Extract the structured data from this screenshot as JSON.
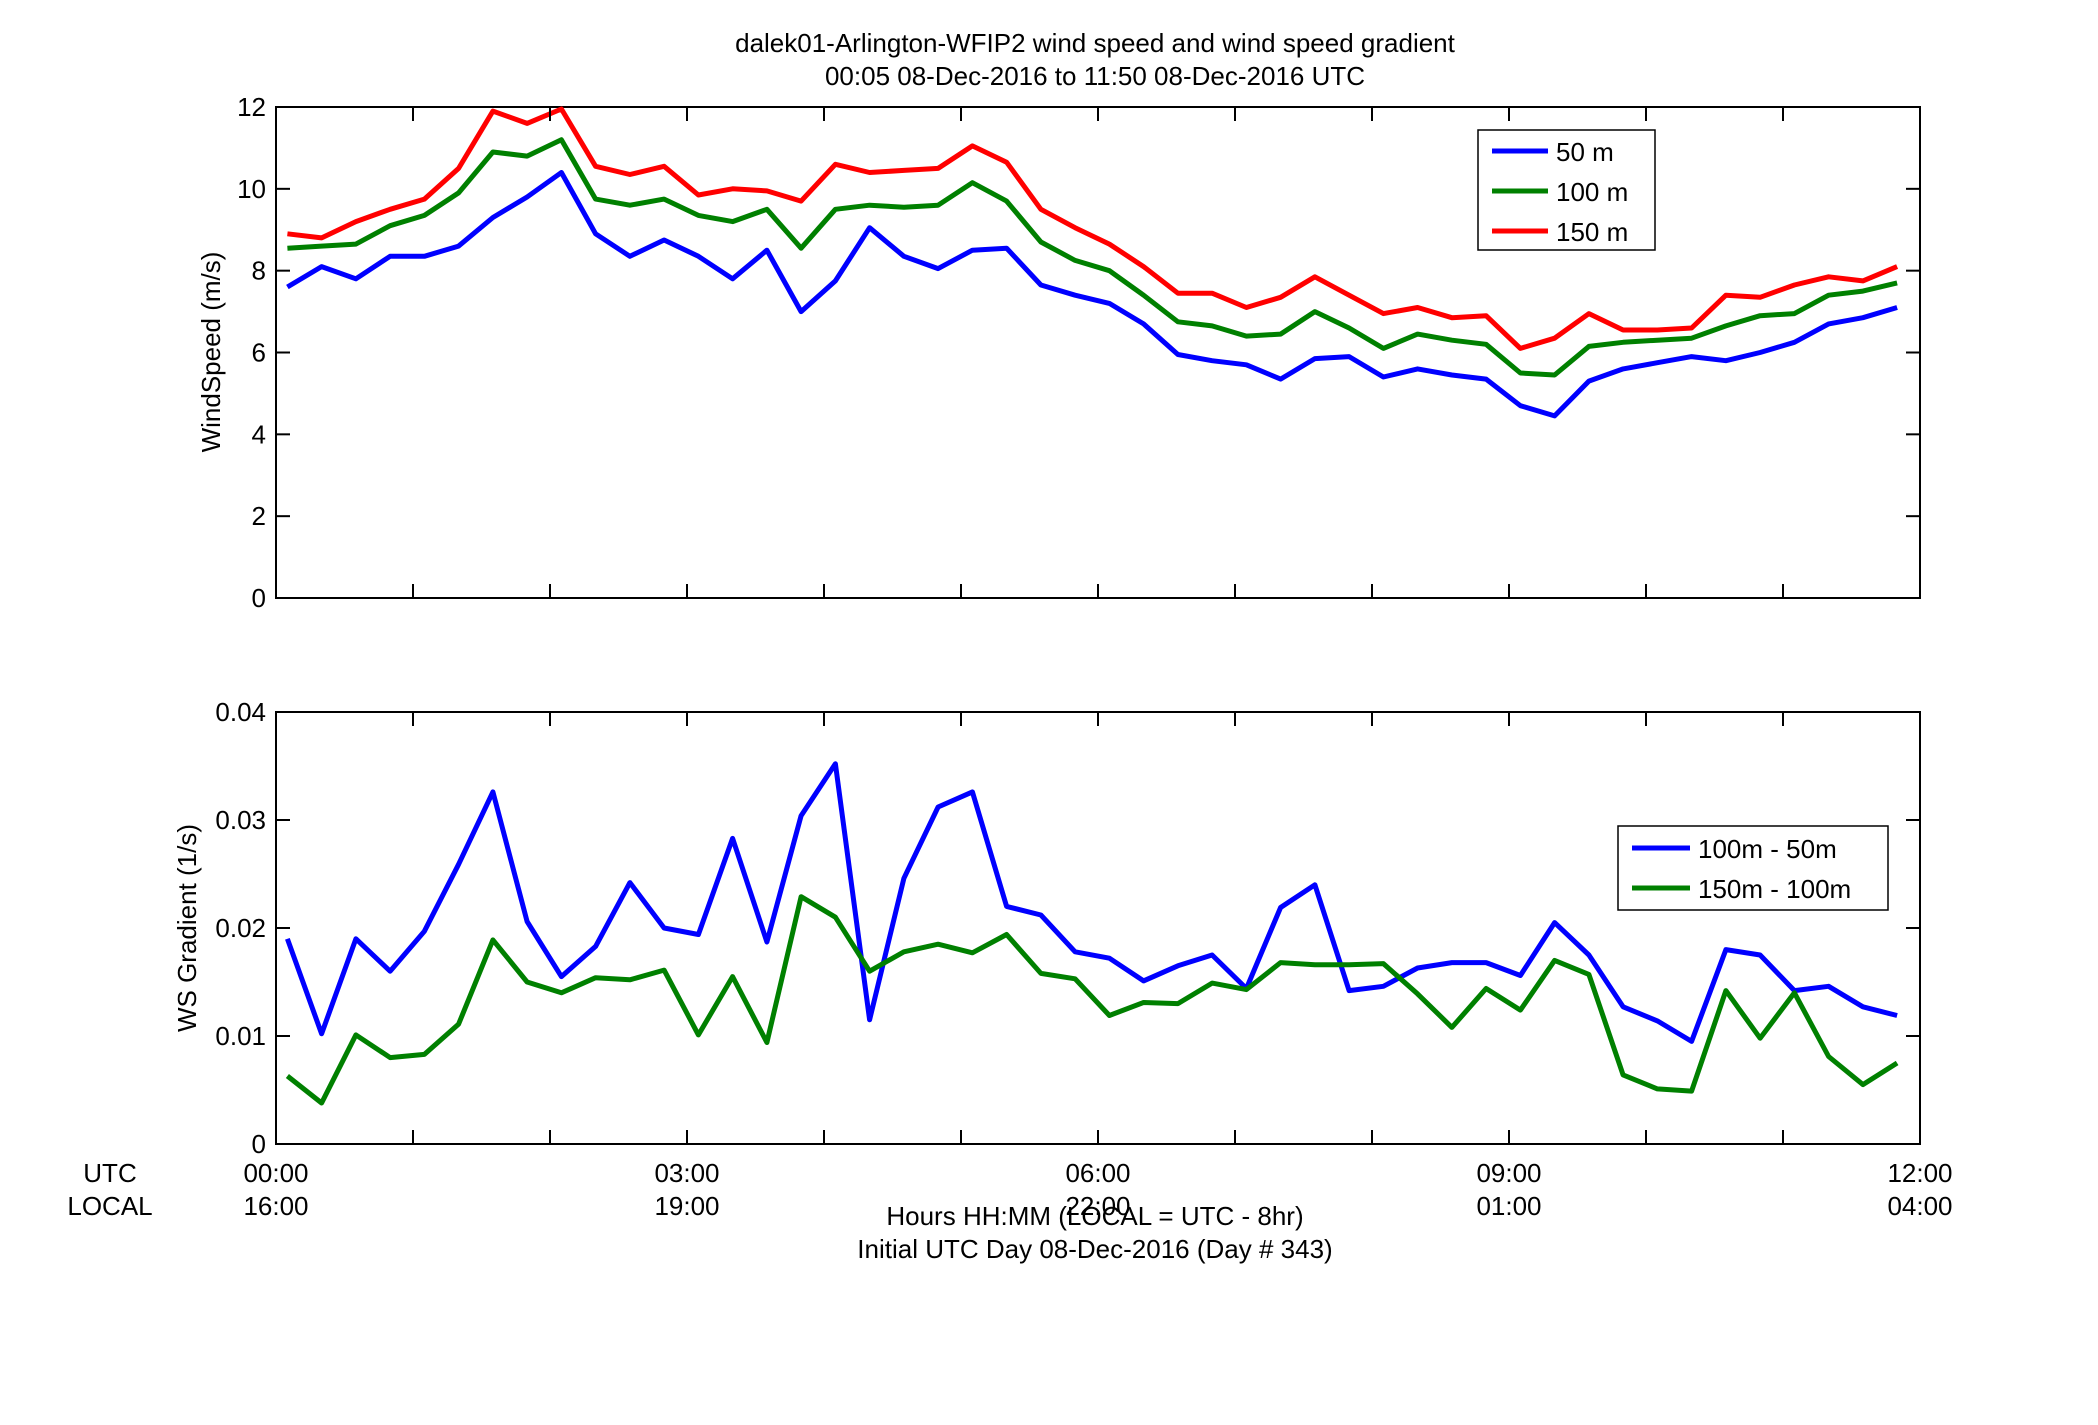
{
  "chart_data": [
    {
      "type": "line",
      "title": "dalek01-Arlington-WFIP2  wind speed and wind speed gradient",
      "subtitle": "00:05 08-Dec-2016 to 11:50 08-Dec-2016  UTC",
      "xlabel": "",
      "ylabel": "WindSpeed (m/s)",
      "xlim": [
        0,
        12
      ],
      "ylim": [
        0,
        12
      ],
      "yticks": [
        "0",
        "2",
        "4",
        "6",
        "8",
        "10",
        "12"
      ],
      "grid": false,
      "legend_position": "top-right",
      "x": [
        0.083,
        0.333,
        0.583,
        0.833,
        1.083,
        1.333,
        1.583,
        1.833,
        2.083,
        2.333,
        2.583,
        2.833,
        3.083,
        3.333,
        3.583,
        3.833,
        4.083,
        4.333,
        4.583,
        4.833,
        5.083,
        5.333,
        5.583,
        5.833,
        6.083,
        6.333,
        6.583,
        6.833,
        7.083,
        7.333,
        7.583,
        7.833,
        8.083,
        8.333,
        8.583,
        8.833,
        9.083,
        9.333,
        9.583,
        9.833,
        10.083,
        10.333,
        10.583,
        10.833,
        11.083,
        11.333,
        11.583,
        11.833
      ],
      "series": [
        {
          "name": "50 m",
          "color": "#0000ff",
          "values": [
            7.6,
            8.1,
            7.8,
            8.35,
            8.35,
            8.6,
            9.3,
            9.8,
            10.4,
            8.9,
            8.35,
            8.75,
            8.35,
            7.8,
            8.5,
            7.0,
            7.75,
            9.05,
            8.35,
            8.05,
            8.5,
            8.55,
            7.65,
            7.4,
            7.2,
            6.7,
            5.95,
            5.8,
            5.7,
            5.35,
            5.85,
            5.9,
            5.4,
            5.6,
            5.45,
            5.35,
            4.7,
            4.45,
            5.3,
            5.6,
            5.75,
            5.9,
            5.8,
            6.0,
            6.25,
            6.7,
            6.85,
            7.1
          ]
        },
        {
          "name": "100 m",
          "color": "#008000",
          "values": [
            8.55,
            8.6,
            8.65,
            9.1,
            9.35,
            9.9,
            10.9,
            10.8,
            11.2,
            9.75,
            9.6,
            9.75,
            9.35,
            9.2,
            9.5,
            8.55,
            9.5,
            9.6,
            9.55,
            9.6,
            10.15,
            9.7,
            8.7,
            8.25,
            8.0,
            7.4,
            6.75,
            6.65,
            6.4,
            6.45,
            7.0,
            6.6,
            6.1,
            6.45,
            6.3,
            6.2,
            5.5,
            5.45,
            6.15,
            6.25,
            6.3,
            6.35,
            6.65,
            6.9,
            6.95,
            7.4,
            7.5,
            7.7
          ]
        },
        {
          "name": "150 m",
          "color": "#ff0000",
          "values": [
            8.9,
            8.8,
            9.2,
            9.5,
            9.75,
            10.5,
            11.9,
            11.6,
            11.95,
            10.55,
            10.35,
            10.55,
            9.85,
            10.0,
            9.95,
            9.7,
            10.6,
            10.4,
            10.45,
            10.5,
            11.05,
            10.65,
            9.5,
            9.05,
            8.65,
            8.1,
            7.45,
            7.45,
            7.1,
            7.35,
            7.85,
            7.4,
            6.95,
            7.1,
            6.85,
            6.9,
            6.1,
            6.35,
            6.95,
            6.55,
            6.55,
            6.6,
            7.4,
            7.35,
            7.65,
            7.85,
            7.75,
            8.1
          ]
        }
      ]
    },
    {
      "type": "line",
      "xlabel": "",
      "ylabel": "WS Gradient (1/s)",
      "xlim": [
        0,
        12
      ],
      "ylim": [
        0,
        0.04
      ],
      "yticks": [
        "0",
        "0.01",
        "0.02",
        "0.03",
        "0.04"
      ],
      "grid": false,
      "legend_position": "right",
      "x": [
        0.083,
        0.333,
        0.583,
        0.833,
        1.083,
        1.333,
        1.583,
        1.833,
        2.083,
        2.333,
        2.583,
        2.833,
        3.083,
        3.333,
        3.583,
        3.833,
        4.083,
        4.333,
        4.583,
        4.833,
        5.083,
        5.333,
        5.583,
        5.833,
        6.083,
        6.333,
        6.583,
        6.833,
        7.083,
        7.333,
        7.583,
        7.833,
        8.083,
        8.333,
        8.583,
        8.833,
        9.083,
        9.333,
        9.583,
        9.833,
        10.083,
        10.333,
        10.583,
        10.833,
        11.083,
        11.333,
        11.583,
        11.833
      ],
      "series": [
        {
          "name": "100m - 50m",
          "color": "#0000ff",
          "values": [
            0.019,
            0.0102,
            0.019,
            0.016,
            0.0197,
            0.0259,
            0.0326,
            0.0206,
            0.0155,
            0.0183,
            0.0242,
            0.02,
            0.0194,
            0.0283,
            0.0187,
            0.0304,
            0.0352,
            0.0115,
            0.0246,
            0.0312,
            0.0326,
            0.022,
            0.0212,
            0.0178,
            0.0172,
            0.0151,
            0.0165,
            0.0175,
            0.0144,
            0.0219,
            0.024,
            0.0142,
            0.0146,
            0.0163,
            0.0168,
            0.0168,
            0.0156,
            0.0205,
            0.0175,
            0.0127,
            0.0114,
            0.0095,
            0.018,
            0.0175,
            0.0142,
            0.0146,
            0.0127,
            0.0119
          ]
        },
        {
          "name": "150m - 100m",
          "color": "#008000",
          "values": [
            0.0063,
            0.0038,
            0.0101,
            0.008,
            0.0083,
            0.0111,
            0.0189,
            0.015,
            0.014,
            0.0154,
            0.0152,
            0.0161,
            0.0101,
            0.0155,
            0.0094,
            0.0229,
            0.021,
            0.016,
            0.0178,
            0.0185,
            0.0177,
            0.0194,
            0.0158,
            0.0153,
            0.0119,
            0.0131,
            0.013,
            0.0149,
            0.0143,
            0.0168,
            0.0166,
            0.0166,
            0.0167,
            0.0139,
            0.0108,
            0.0144,
            0.0124,
            0.017,
            0.0157,
            0.0064,
            0.0051,
            0.0049,
            0.0142,
            0.0098,
            0.014,
            0.0081,
            0.0055,
            0.0075
          ]
        }
      ]
    }
  ],
  "x_axis": {
    "utc_label": "UTC",
    "local_label": "LOCAL",
    "utc_ticks": [
      "00:00",
      "03:00",
      "06:00",
      "09:00",
      "12:00"
    ],
    "local_ticks": [
      "16:00",
      "19:00",
      "22:00",
      "01:00",
      "04:00"
    ],
    "tick_hours": [
      0,
      3,
      6,
      9,
      12
    ],
    "caption_line1": "Hours HH:MM  (LOCAL = UTC - 8hr)",
    "caption_line2": "Initial UTC Day 08-Dec-2016 (Day # 343)"
  }
}
